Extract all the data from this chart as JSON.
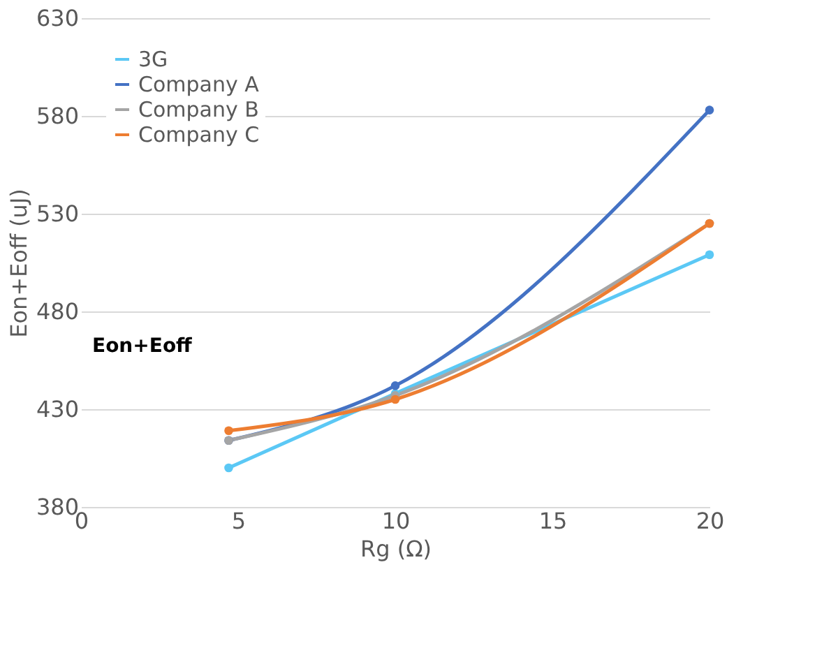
{
  "chart_data": {
    "type": "line",
    "xlabel": "Rg (Ω)",
    "ylabel": "Eon+Eoff (uJ)",
    "x": [
      4.7,
      10,
      20
    ],
    "series": [
      {
        "name": "3G",
        "color": "#5bc8f5",
        "values": [
          400,
          438,
          509
        ]
      },
      {
        "name": "Company A",
        "color": "#4472c4",
        "values": [
          414,
          442,
          583
        ]
      },
      {
        "name": "Company B",
        "color": "#a5a5a5",
        "values": [
          414,
          437,
          525
        ]
      },
      {
        "name": "Company C",
        "color": "#ed7d31",
        "values": [
          419,
          435,
          525
        ]
      }
    ],
    "xlim": [
      0,
      20
    ],
    "xticks": [
      0,
      5,
      10,
      15,
      20
    ],
    "ylim": [
      380,
      630
    ],
    "yticks": [
      380,
      430,
      480,
      530,
      580,
      630
    ],
    "grid": "y",
    "legend": "top left",
    "marker": "circle",
    "line_style": "solid",
    "annotations": [
      "Eon+Eoff"
    ]
  }
}
